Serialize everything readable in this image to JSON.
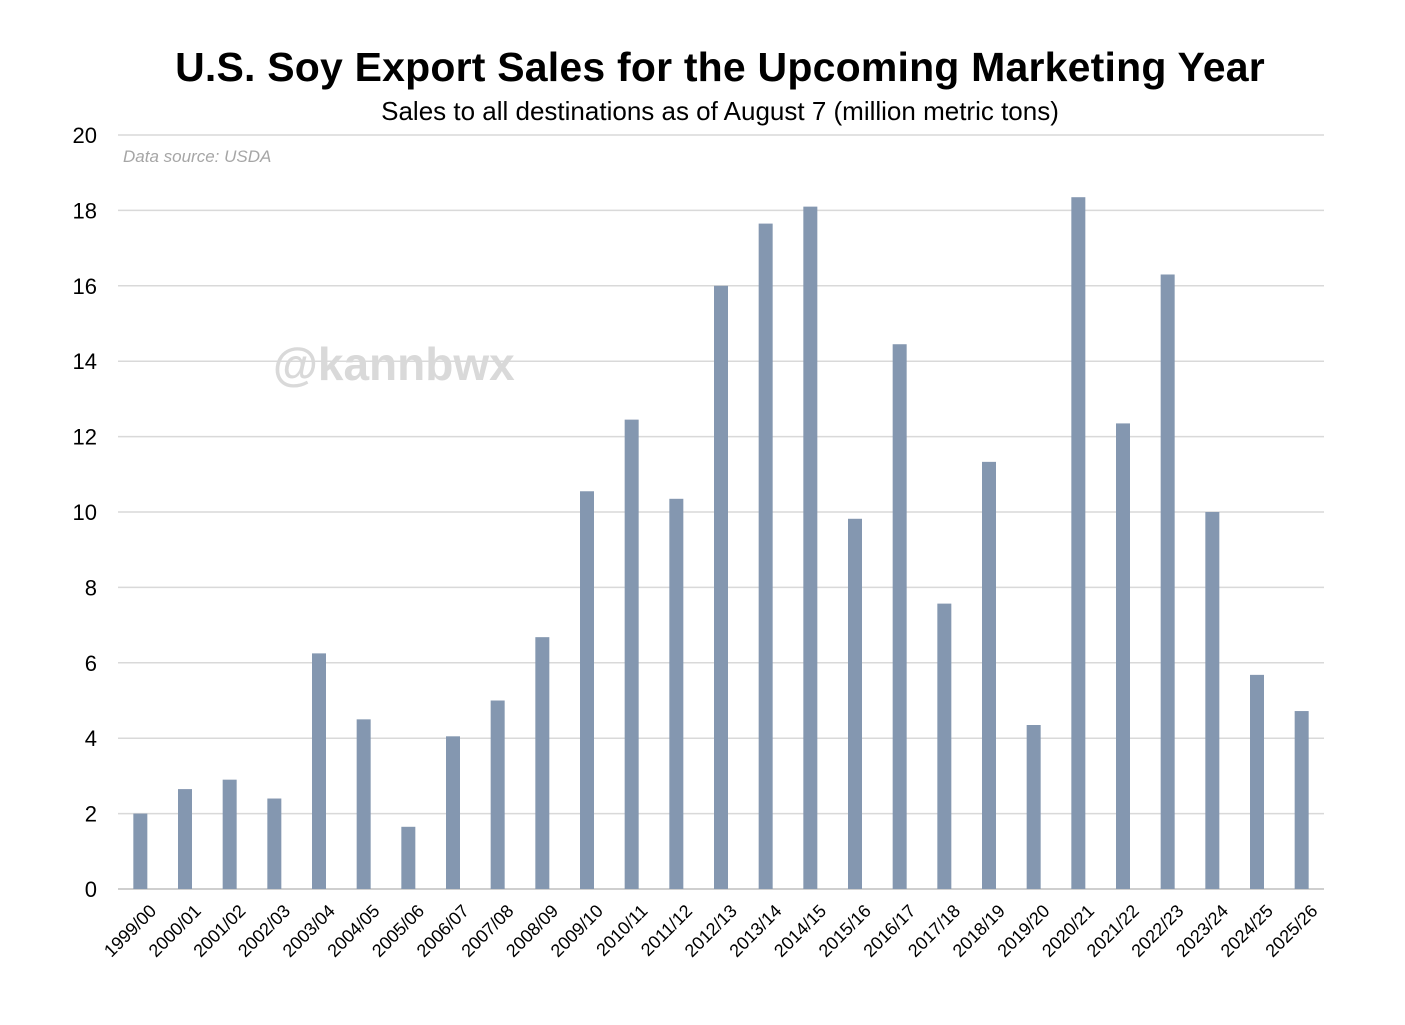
{
  "chart_data": {
    "type": "bar",
    "title": "U.S. Soy Export Sales for the Upcoming Marketing Year",
    "subtitle": "Sales to all destinations as of August 7 (million metric tons)",
    "annotation": "Data source: USDA",
    "watermark": "@kannbwx",
    "xlabel": "",
    "ylabel": "",
    "ylim": [
      0,
      20
    ],
    "yticks": [
      0,
      2,
      4,
      6,
      8,
      10,
      12,
      14,
      16,
      18,
      20
    ],
    "grid": true,
    "bar_color": "#8497b0",
    "categories": [
      "1999/00",
      "2000/01",
      "2001/02",
      "2002/03",
      "2003/04",
      "2004/05",
      "2005/06",
      "2006/07",
      "2007/08",
      "2008/09",
      "2009/10",
      "2010/11",
      "2011/12",
      "2012/13",
      "2013/14",
      "2014/15",
      "2015/16",
      "2016/17",
      "2017/18",
      "2018/19",
      "2019/20",
      "2020/21",
      "2021/22",
      "2022/23",
      "2023/24",
      "2024/25",
      "2025/26"
    ],
    "values": [
      2.0,
      2.65,
      2.9,
      2.4,
      6.25,
      4.5,
      1.65,
      4.05,
      5.0,
      6.68,
      10.55,
      12.45,
      10.35,
      16.0,
      17.65,
      18.1,
      9.82,
      14.45,
      7.57,
      11.33,
      4.35,
      18.35,
      12.35,
      16.3,
      10.0,
      5.68,
      4.72
    ]
  }
}
